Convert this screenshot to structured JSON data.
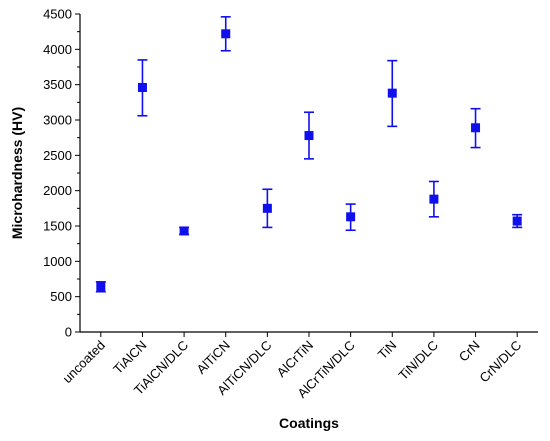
{
  "chart_data": {
    "type": "scatter",
    "title": "",
    "xlabel": "Coatings",
    "ylabel": "Microhardness (HV)",
    "ylim": [
      0,
      4500
    ],
    "yticks": [
      0,
      500,
      1000,
      1500,
      2000,
      2500,
      3000,
      3500,
      4000,
      4500
    ],
    "grid": false,
    "marker": "square",
    "color": "#1010ee",
    "categories": [
      "uncoated",
      "TiAlCN",
      "TiAlCN/DLC",
      "AlTiCN",
      "AlTiCN/DLC",
      "AlCrTiN",
      "AlCrTiN/DLC",
      "TiN",
      "TiN/DLC",
      "CrN",
      "CrN/DLC"
    ],
    "values": [
      640,
      3460,
      1430,
      4220,
      1750,
      2780,
      1630,
      3380,
      1880,
      2890,
      1570
    ],
    "error_low": [
      570,
      3060,
      1380,
      3980,
      1480,
      2450,
      1440,
      2910,
      1630,
      2610,
      1480
    ],
    "error_high": [
      710,
      3850,
      1480,
      4460,
      2020,
      3110,
      1810,
      3840,
      2130,
      3160,
      1660
    ]
  }
}
